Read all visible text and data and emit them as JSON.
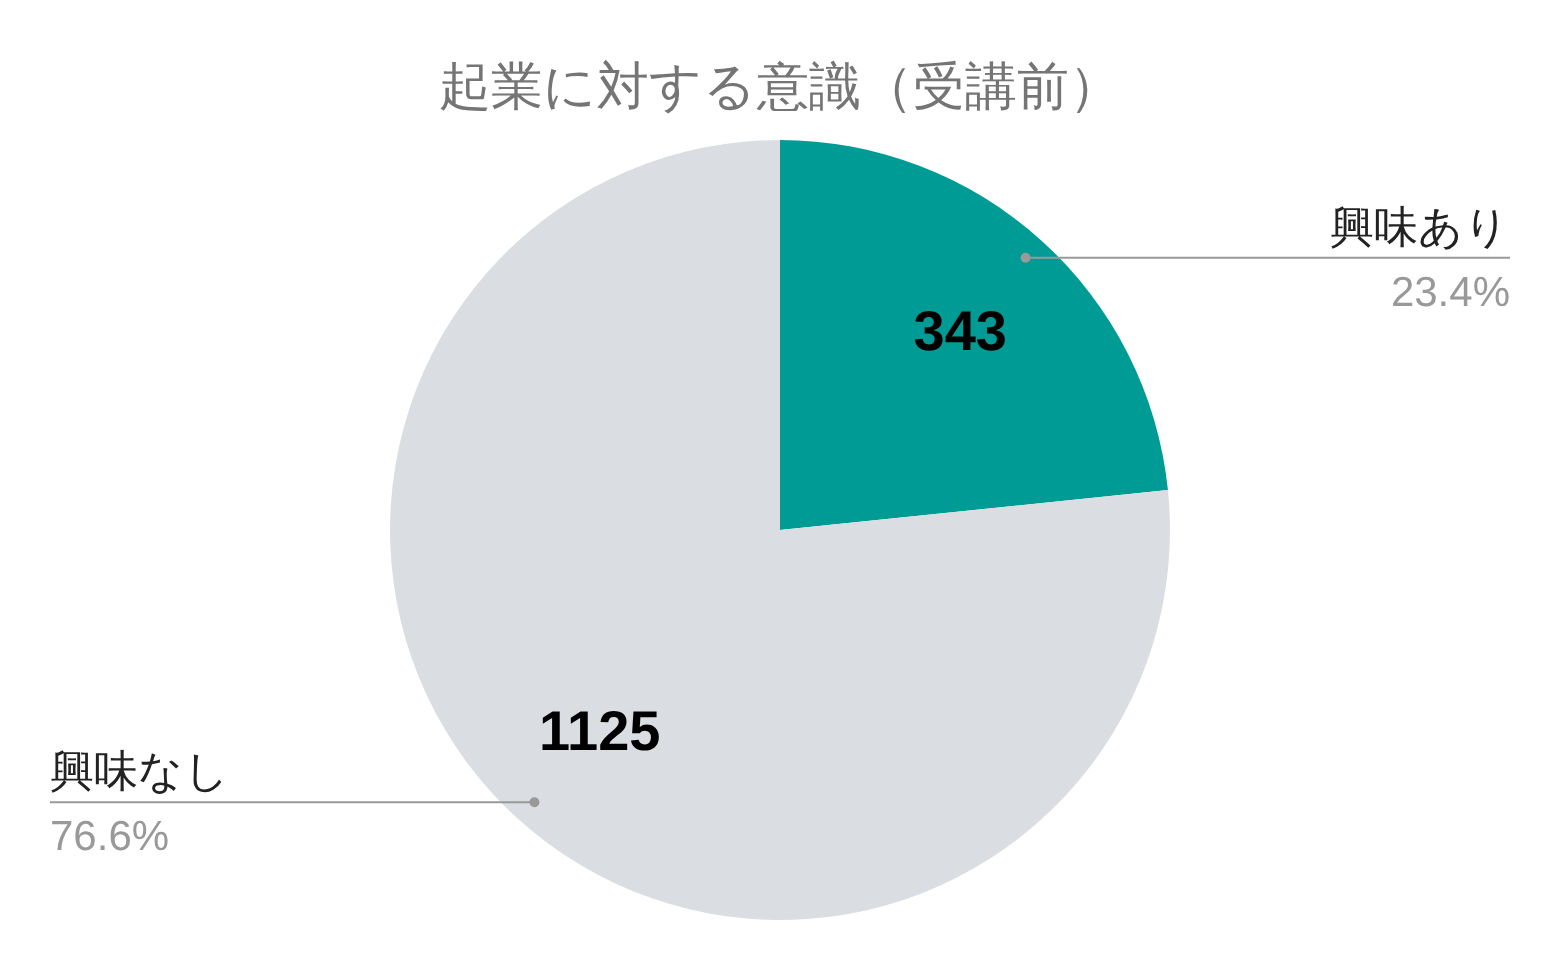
{
  "chart_data": {
    "type": "pie",
    "title": "起業に対する意識（受講前）",
    "categories": [
      "興味あり",
      "興味なし"
    ],
    "values": [
      343,
      1125
    ],
    "colors": [
      "#009b95",
      "#dadee2"
    ],
    "data_labels": true,
    "annotations": [
      "23.4%",
      "76.6%"
    ]
  }
}
